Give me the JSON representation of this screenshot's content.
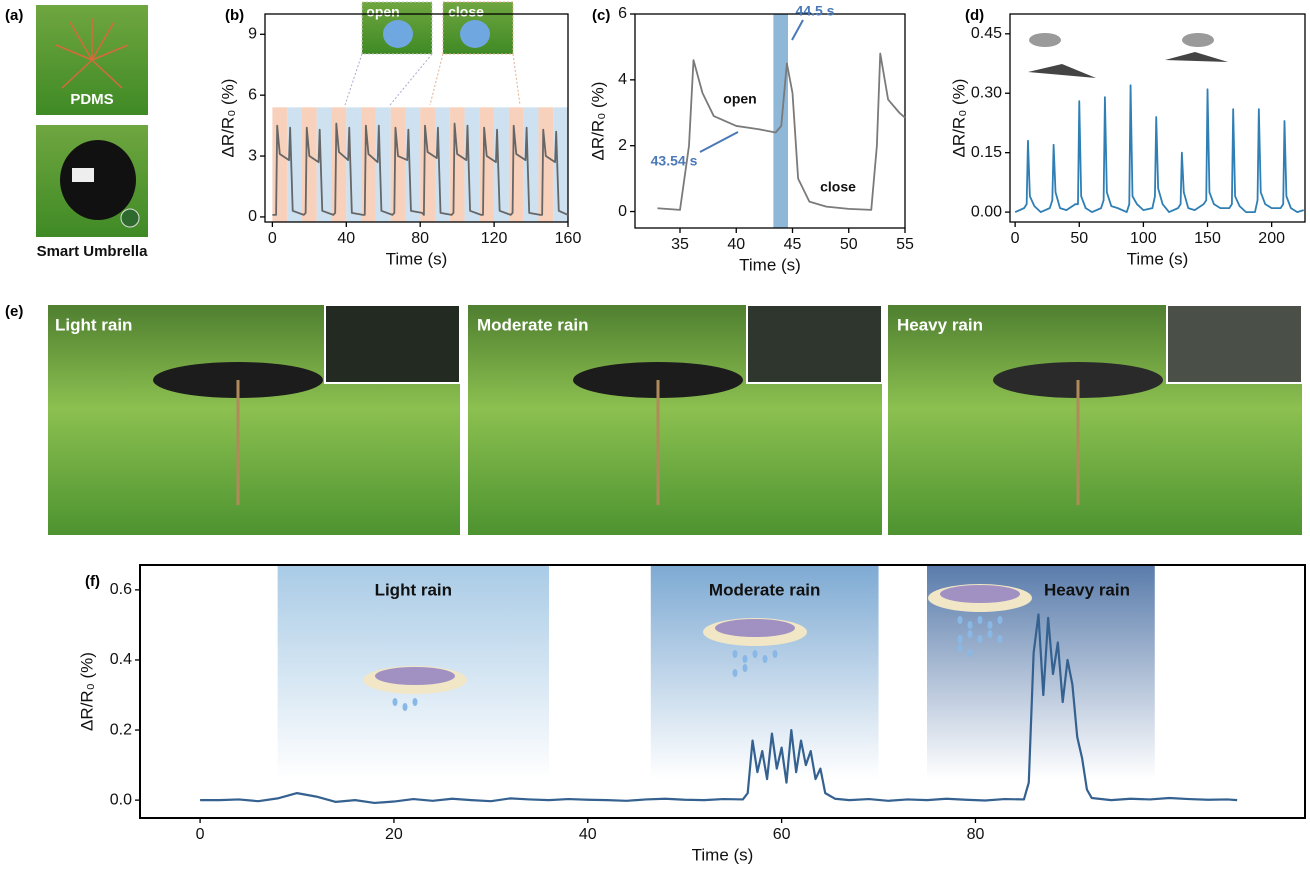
{
  "photo_a": {
    "label": "(a)",
    "captions": [
      "PDMS",
      "Smart Umbrella"
    ]
  },
  "photo_e": {
    "label": "(e)",
    "captions": [
      "Light rain",
      "Moderate rain",
      "Heavy rain"
    ]
  },
  "chart_data": [
    {
      "type": "line",
      "panel": "(b)",
      "xlabel": "Time (s)",
      "ylabel": "ΔR/R₀ (%)",
      "xlim": [
        -4,
        160
      ],
      "ylim": [
        -0.25,
        10
      ],
      "xticks": [
        0,
        40,
        80,
        120,
        160
      ],
      "yticks": [
        0,
        3,
        6,
        9
      ],
      "insets": [
        "open",
        "close"
      ],
      "band_edges": [
        0,
        8,
        16,
        24,
        32,
        40,
        48,
        56,
        64,
        72,
        80,
        88,
        96,
        104,
        112,
        120,
        128,
        136,
        144,
        152,
        160
      ],
      "band_colors": [
        "#f7c9b0",
        "#c5dced"
      ],
      "band_top": 5.4,
      "x": [
        0,
        2,
        2.6,
        4,
        9,
        9.6,
        11,
        17,
        18,
        18.6,
        20,
        25,
        25.6,
        27,
        33,
        34,
        34.6,
        36,
        41,
        41.6,
        43,
        49,
        50,
        50.6,
        52,
        57,
        57.6,
        59,
        65,
        66,
        66.6,
        68,
        73,
        73.6,
        75,
        81,
        82,
        82.6,
        84,
        89,
        89.6,
        91,
        97,
        98,
        98.6,
        100,
        105,
        105.6,
        107,
        113,
        114,
        114.6,
        116,
        121,
        121.6,
        123,
        129,
        130,
        130.6,
        132,
        137,
        137.6,
        139,
        145,
        146,
        146.6,
        148,
        153,
        153.6,
        155,
        160
      ],
      "series": [
        {
          "color": "#666666",
          "values": [
            0.1,
            0.1,
            4.5,
            3.1,
            2.8,
            4.4,
            0.3,
            0.1,
            0.2,
            4.4,
            3.0,
            2.7,
            4.3,
            0.3,
            0.1,
            0.2,
            4.6,
            3.2,
            2.8,
            4.4,
            0.2,
            0.1,
            0.1,
            4.5,
            3.1,
            2.7,
            4.5,
            0.3,
            0.1,
            0.2,
            4.4,
            3.0,
            2.8,
            4.3,
            0.3,
            0.2,
            0.1,
            4.5,
            3.2,
            2.9,
            4.4,
            0.2,
            0.1,
            0.2,
            4.6,
            3.1,
            2.8,
            4.5,
            0.3,
            0.1,
            0.1,
            4.4,
            3.0,
            2.7,
            4.3,
            0.3,
            0.1,
            0.2,
            4.5,
            3.1,
            2.8,
            4.4,
            0.2,
            0.1,
            0.1,
            4.3,
            3.0,
            2.7,
            4.2,
            0.3,
            0.1
          ]
        }
      ]
    },
    {
      "type": "line",
      "panel": "(c)",
      "xlabel": "Time (s)",
      "ylabel": "ΔR/R₀ (%)",
      "xlim": [
        31,
        55
      ],
      "ylim": [
        -0.5,
        6
      ],
      "xticks": [
        35,
        40,
        45,
        50,
        55
      ],
      "yticks": [
        0,
        2,
        4,
        6
      ],
      "annotations": [
        "open",
        "close",
        "43.54 s",
        "44.5 s"
      ],
      "annotation_color": "#4a78b8",
      "highlight": [
        43.3,
        44.6
      ],
      "highlight_color": "#8fb8d8",
      "x": [
        33,
        35,
        35.8,
        36.2,
        37,
        38,
        40,
        42,
        43.5,
        44,
        44.5,
        45,
        45.5,
        46.5,
        48,
        50,
        52,
        52.5,
        52.8,
        53.5,
        54.5,
        55
      ],
      "series": [
        {
          "color": "#7a7a7a",
          "values": [
            0.1,
            0.05,
            2.0,
            4.6,
            3.6,
            2.9,
            2.6,
            2.5,
            2.4,
            2.6,
            4.5,
            3.6,
            1.0,
            0.3,
            0.15,
            0.08,
            0.05,
            2.0,
            4.8,
            3.4,
            3.0,
            2.85
          ]
        }
      ]
    },
    {
      "type": "line",
      "panel": "(d)",
      "xlabel": "Time (s)",
      "ylabel": "ΔR/R₀ (%)",
      "xlim": [
        -4,
        226
      ],
      "ylim": [
        -0.025,
        0.5
      ],
      "xticks": [
        0,
        50,
        100,
        150,
        200
      ],
      "yticks": [
        {
          "value": 0,
          "label": "0.00"
        },
        0.15,
        {
          "value": 0.3,
          "label": "0.30"
        },
        0.45
      ],
      "x": [
        0,
        7,
        9,
        10,
        11.5,
        15,
        20,
        27,
        29,
        30,
        31.5,
        35,
        40,
        47,
        49,
        50,
        51.5,
        55,
        60,
        67,
        69,
        70,
        71.5,
        75,
        80,
        87,
        89,
        90,
        91.5,
        95,
        100,
        107,
        109,
        110,
        111.5,
        115,
        120,
        127,
        129,
        130,
        131.5,
        135,
        140,
        147,
        149,
        150,
        151.5,
        155,
        160,
        167,
        169,
        170,
        171.5,
        175,
        180,
        187,
        189,
        190,
        191.5,
        195,
        200,
        207,
        209,
        210,
        211.5,
        215,
        220,
        225
      ],
      "series": [
        {
          "color": "#2f7fb5",
          "values": [
            0.0,
            0.01,
            0.02,
            0.18,
            0.04,
            0.015,
            0.0,
            0.01,
            0.03,
            0.17,
            0.05,
            0.01,
            0.005,
            0.02,
            0.02,
            0.28,
            0.04,
            0.01,
            0.0,
            0.01,
            0.03,
            0.29,
            0.05,
            0.015,
            0.01,
            0.0,
            0.02,
            0.32,
            0.04,
            0.02,
            0.005,
            0.01,
            0.04,
            0.24,
            0.06,
            0.02,
            0.0,
            0.01,
            0.02,
            0.15,
            0.05,
            0.01,
            0.005,
            0.02,
            0.03,
            0.31,
            0.05,
            0.02,
            0.01,
            0.01,
            0.02,
            0.26,
            0.04,
            0.015,
            0.0,
            0.0,
            0.03,
            0.26,
            0.05,
            0.02,
            0.01,
            0.01,
            0.02,
            0.23,
            0.04,
            0.01,
            0.0,
            0.005
          ]
        }
      ]
    },
    {
      "type": "line",
      "panel": "(f)",
      "xlabel": "Time (s)",
      "ylabel": "ΔR/R₀ (%)",
      "xlim": [
        -6.2,
        114
      ],
      "ylim": [
        -0.051,
        0.671
      ],
      "xticks": [
        0,
        20,
        40,
        60,
        80
      ],
      "yticks": [
        {
          "value": 0,
          "label": "0.0"
        },
        0.2,
        0.4,
        0.6
      ],
      "bands": [
        [
          8,
          36
        ],
        [
          46.5,
          70
        ],
        [
          75,
          98.5
        ]
      ],
      "band_colors": [
        "#a9cbe6",
        "#7eaad3",
        "#5a7cab"
      ],
      "band_labels": [
        "Light rain",
        "Moderate rain",
        "Heavy rain"
      ],
      "x": [
        0,
        2,
        4,
        6,
        8,
        10,
        12,
        14,
        16,
        18,
        20,
        22,
        24,
        26,
        28,
        30,
        32,
        34,
        36,
        38,
        40,
        42,
        44,
        46,
        48,
        50,
        52,
        54,
        56,
        56.5,
        57,
        57.5,
        58,
        58.5,
        59,
        59.5,
        60,
        60.5,
        61,
        61.5,
        62,
        62.5,
        63,
        63.5,
        64,
        64.5,
        65.5,
        67,
        69,
        71,
        73,
        75,
        77,
        79,
        81,
        83,
        85,
        85.5,
        86,
        86.5,
        87,
        87.5,
        88,
        88.5,
        89,
        89.5,
        90,
        90.5,
        91,
        91.5,
        92,
        94,
        96,
        98,
        100,
        102,
        104,
        106,
        107
      ],
      "series": [
        {
          "color": "#34618f",
          "values": [
            0,
            0,
            0.002,
            -0.003,
            0.005,
            0.02,
            0.01,
            -0.005,
            0,
            -0.008,
            -0.004,
            0.003,
            -0.002,
            0.004,
            0,
            -0.003,
            0.005,
            0.002,
            0,
            0.003,
            0.001,
            0,
            -0.002,
            0.002,
            0.004,
            0.001,
            0,
            0.003,
            0.002,
            0.02,
            0.17,
            0.08,
            0.14,
            0.06,
            0.19,
            0.09,
            0.15,
            0.05,
            0.2,
            0.08,
            0.17,
            0.1,
            0.14,
            0.06,
            0.09,
            0.02,
            0.004,
            0.0,
            0.003,
            -0.002,
            0.002,
            0.0,
            0.004,
            0.001,
            -0.001,
            0.003,
            0.002,
            0.05,
            0.42,
            0.53,
            0.3,
            0.52,
            0.36,
            0.45,
            0.28,
            0.4,
            0.33,
            0.18,
            0.12,
            0.03,
            0.006,
            0.0,
            0.004,
            0.002,
            0.006,
            0.003,
            0.001,
            0.002,
            0.0
          ]
        }
      ]
    }
  ]
}
